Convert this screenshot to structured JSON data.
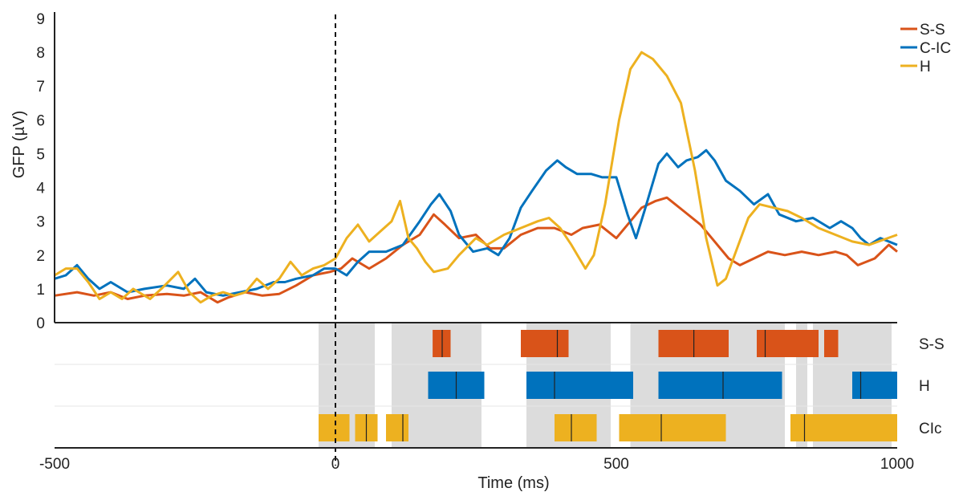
{
  "chart_data": {
    "type": "line",
    "xlabel": "Time (ms)",
    "ylabel": "GFP (µV)",
    "xlim": [
      -500,
      1000
    ],
    "ylim": [
      0,
      9
    ],
    "x_ticks": [
      -500,
      0,
      500,
      1000
    ],
    "y_ticks": [
      0,
      1,
      2,
      3,
      4,
      5,
      6,
      7,
      8,
      9
    ],
    "stimulus_onset": 0,
    "grid": false,
    "legend_position": "top-right",
    "series": [
      {
        "name": "S-S",
        "color": "#d95319",
        "points": [
          [
            -500,
            0.8
          ],
          [
            -460,
            0.9
          ],
          [
            -430,
            0.8
          ],
          [
            -400,
            0.9
          ],
          [
            -370,
            0.7
          ],
          [
            -340,
            0.8
          ],
          [
            -300,
            0.85
          ],
          [
            -270,
            0.8
          ],
          [
            -240,
            0.9
          ],
          [
            -210,
            0.6
          ],
          [
            -190,
            0.75
          ],
          [
            -160,
            0.9
          ],
          [
            -130,
            0.8
          ],
          [
            -100,
            0.85
          ],
          [
            -70,
            1.1
          ],
          [
            -40,
            1.4
          ],
          [
            -10,
            1.5
          ],
          [
            10,
            1.6
          ],
          [
            30,
            1.9
          ],
          [
            60,
            1.6
          ],
          [
            90,
            1.9
          ],
          [
            120,
            2.3
          ],
          [
            150,
            2.6
          ],
          [
            175,
            3.2
          ],
          [
            195,
            2.9
          ],
          [
            220,
            2.5
          ],
          [
            250,
            2.6
          ],
          [
            275,
            2.2
          ],
          [
            300,
            2.2
          ],
          [
            330,
            2.6
          ],
          [
            360,
            2.8
          ],
          [
            390,
            2.8
          ],
          [
            420,
            2.6
          ],
          [
            440,
            2.8
          ],
          [
            470,
            2.9
          ],
          [
            500,
            2.5
          ],
          [
            520,
            2.9
          ],
          [
            545,
            3.4
          ],
          [
            570,
            3.6
          ],
          [
            590,
            3.7
          ],
          [
            620,
            3.3
          ],
          [
            650,
            2.9
          ],
          [
            675,
            2.4
          ],
          [
            700,
            1.9
          ],
          [
            720,
            1.7
          ],
          [
            745,
            1.9
          ],
          [
            770,
            2.1
          ],
          [
            800,
            2.0
          ],
          [
            830,
            2.1
          ],
          [
            860,
            2.0
          ],
          [
            890,
            2.1
          ],
          [
            910,
            2.0
          ],
          [
            930,
            1.7
          ],
          [
            960,
            1.9
          ],
          [
            985,
            2.3
          ],
          [
            1000,
            2.1
          ]
        ]
      },
      {
        "name": "C-IC",
        "color": "#0072bd",
        "points": [
          [
            -500,
            1.3
          ],
          [
            -480,
            1.4
          ],
          [
            -460,
            1.7
          ],
          [
            -440,
            1.3
          ],
          [
            -420,
            1.0
          ],
          [
            -400,
            1.2
          ],
          [
            -370,
            0.9
          ],
          [
            -340,
            1.0
          ],
          [
            -300,
            1.1
          ],
          [
            -270,
            1.0
          ],
          [
            -250,
            1.3
          ],
          [
            -230,
            0.9
          ],
          [
            -200,
            0.8
          ],
          [
            -170,
            0.9
          ],
          [
            -140,
            1.0
          ],
          [
            -110,
            1.2
          ],
          [
            -90,
            1.2
          ],
          [
            -70,
            1.3
          ],
          [
            -40,
            1.4
          ],
          [
            -20,
            1.6
          ],
          [
            0,
            1.6
          ],
          [
            20,
            1.4
          ],
          [
            40,
            1.8
          ],
          [
            60,
            2.1
          ],
          [
            90,
            2.1
          ],
          [
            120,
            2.3
          ],
          [
            150,
            3.0
          ],
          [
            170,
            3.5
          ],
          [
            185,
            3.8
          ],
          [
            205,
            3.3
          ],
          [
            220,
            2.6
          ],
          [
            245,
            2.1
          ],
          [
            270,
            2.2
          ],
          [
            290,
            2.0
          ],
          [
            310,
            2.5
          ],
          [
            330,
            3.4
          ],
          [
            350,
            3.9
          ],
          [
            375,
            4.5
          ],
          [
            395,
            4.8
          ],
          [
            410,
            4.6
          ],
          [
            430,
            4.4
          ],
          [
            455,
            4.4
          ],
          [
            475,
            4.3
          ],
          [
            500,
            4.3
          ],
          [
            520,
            3.2
          ],
          [
            535,
            2.5
          ],
          [
            550,
            3.3
          ],
          [
            575,
            4.7
          ],
          [
            590,
            5.0
          ],
          [
            610,
            4.6
          ],
          [
            625,
            4.8
          ],
          [
            645,
            4.9
          ],
          [
            660,
            5.1
          ],
          [
            675,
            4.8
          ],
          [
            695,
            4.2
          ],
          [
            720,
            3.9
          ],
          [
            745,
            3.5
          ],
          [
            770,
            3.8
          ],
          [
            790,
            3.2
          ],
          [
            820,
            3.0
          ],
          [
            850,
            3.1
          ],
          [
            880,
            2.8
          ],
          [
            900,
            3.0
          ],
          [
            920,
            2.8
          ],
          [
            935,
            2.5
          ],
          [
            950,
            2.3
          ],
          [
            970,
            2.5
          ],
          [
            1000,
            2.3
          ]
        ]
      },
      {
        "name": "H",
        "color": "#edb120",
        "points": [
          [
            -500,
            1.4
          ],
          [
            -480,
            1.6
          ],
          [
            -460,
            1.6
          ],
          [
            -440,
            1.2
          ],
          [
            -420,
            0.7
          ],
          [
            -400,
            0.9
          ],
          [
            -380,
            0.7
          ],
          [
            -360,
            1.0
          ],
          [
            -330,
            0.7
          ],
          [
            -310,
            1.0
          ],
          [
            -280,
            1.5
          ],
          [
            -260,
            0.9
          ],
          [
            -240,
            0.6
          ],
          [
            -220,
            0.8
          ],
          [
            -200,
            0.9
          ],
          [
            -180,
            0.8
          ],
          [
            -160,
            0.9
          ],
          [
            -140,
            1.3
          ],
          [
            -120,
            1.0
          ],
          [
            -100,
            1.3
          ],
          [
            -80,
            1.8
          ],
          [
            -60,
            1.4
          ],
          [
            -40,
            1.6
          ],
          [
            -20,
            1.7
          ],
          [
            0,
            1.9
          ],
          [
            20,
            2.5
          ],
          [
            40,
            2.9
          ],
          [
            60,
            2.4
          ],
          [
            80,
            2.7
          ],
          [
            100,
            3.0
          ],
          [
            115,
            3.6
          ],
          [
            130,
            2.5
          ],
          [
            145,
            2.2
          ],
          [
            160,
            1.8
          ],
          [
            175,
            1.5
          ],
          [
            200,
            1.6
          ],
          [
            220,
            2.0
          ],
          [
            250,
            2.5
          ],
          [
            270,
            2.3
          ],
          [
            300,
            2.6
          ],
          [
            330,
            2.8
          ],
          [
            360,
            3.0
          ],
          [
            380,
            3.1
          ],
          [
            400,
            2.8
          ],
          [
            420,
            2.3
          ],
          [
            445,
            1.6
          ],
          [
            460,
            2.0
          ],
          [
            480,
            3.5
          ],
          [
            505,
            6.0
          ],
          [
            525,
            7.5
          ],
          [
            545,
            8.0
          ],
          [
            565,
            7.8
          ],
          [
            590,
            7.3
          ],
          [
            615,
            6.5
          ],
          [
            640,
            4.5
          ],
          [
            660,
            2.5
          ],
          [
            670,
            1.8
          ],
          [
            680,
            1.1
          ],
          [
            695,
            1.3
          ],
          [
            715,
            2.2
          ],
          [
            735,
            3.1
          ],
          [
            755,
            3.5
          ],
          [
            780,
            3.4
          ],
          [
            805,
            3.3
          ],
          [
            830,
            3.1
          ],
          [
            860,
            2.8
          ],
          [
            890,
            2.6
          ],
          [
            920,
            2.4
          ],
          [
            950,
            2.3
          ],
          [
            1000,
            2.6
          ]
        ]
      }
    ],
    "significance_shading": [
      [
        -30,
        70
      ],
      [
        100,
        260
      ],
      [
        340,
        490
      ],
      [
        525,
        800
      ],
      [
        820,
        840
      ],
      [
        850,
        990
      ]
    ],
    "tracks": [
      {
        "label": "S-S",
        "color": "#d95319",
        "intervals": [
          [
            173,
            205
          ],
          [
            330,
            415
          ],
          [
            575,
            700
          ],
          [
            750,
            860
          ],
          [
            870,
            895
          ]
        ],
        "peaks": [
          190,
          395,
          638,
          765
        ]
      },
      {
        "label": "H",
        "color": "#0072bd",
        "intervals": [
          [
            165,
            265
          ],
          [
            340,
            530
          ],
          [
            575,
            795
          ],
          [
            920,
            1000
          ]
        ],
        "peaks": [
          215,
          390,
          690,
          935
        ]
      },
      {
        "label": "CIc",
        "color": "#edb120",
        "intervals": [
          [
            -30,
            25
          ],
          [
            35,
            75
          ],
          [
            90,
            130
          ],
          [
            390,
            465
          ],
          [
            505,
            695
          ],
          [
            810,
            1000
          ]
        ],
        "peaks": [
          55,
          120,
          420,
          580,
          835
        ]
      }
    ]
  }
}
